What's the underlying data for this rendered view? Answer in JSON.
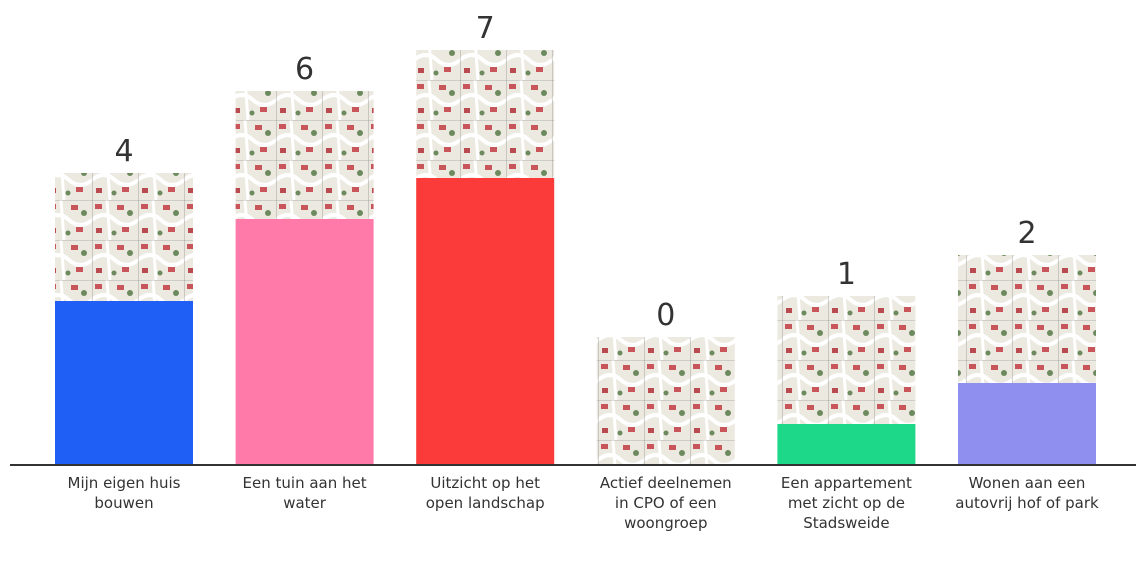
{
  "chart_data": {
    "type": "bar",
    "categories": [
      "Mijn eigen huis bouwen",
      "Een tuin aan het water",
      "Uitzicht op het open landschap",
      "Actief deelnemen in CPO of een woongroep",
      "Een appartement met zicht op de Stadsweide",
      "Wonen aan een autovrij hof of park"
    ],
    "values": [
      4,
      6,
      7,
      0,
      1,
      2
    ],
    "colors": [
      "#1f5ff5",
      "#ff7aa8",
      "#fb3a3a",
      "#cccccc",
      "#1ed88a",
      "#8f8ff0"
    ]
  }
}
